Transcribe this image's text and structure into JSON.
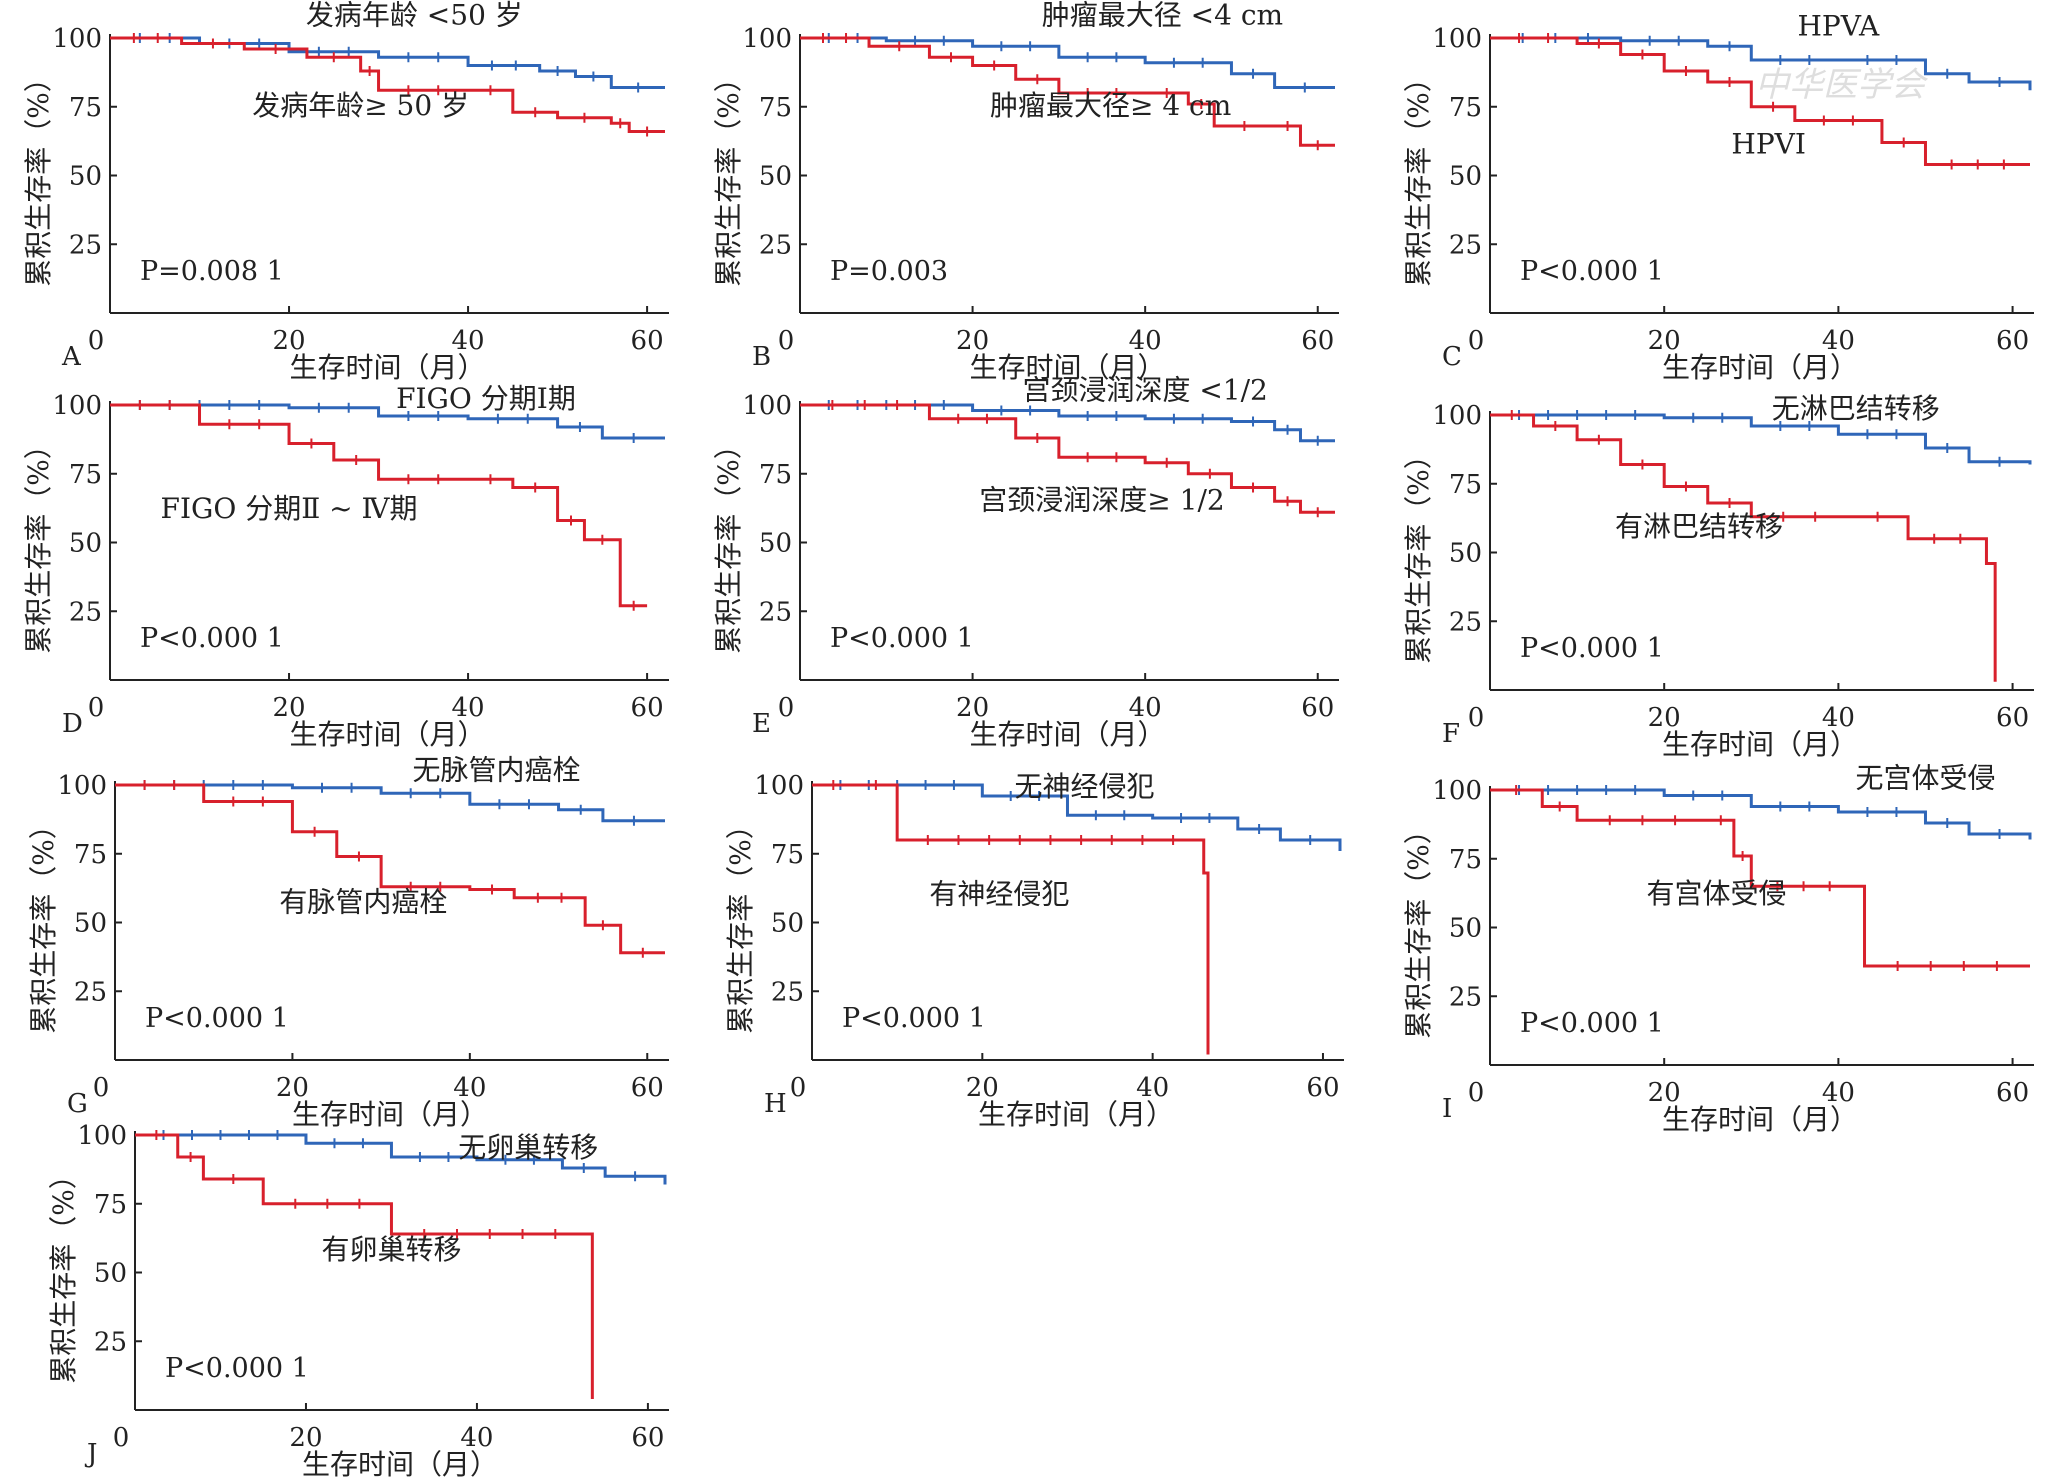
{
  "figure": {
    "watermark_text": "中华医学会",
    "colors": {
      "red": "#d8202c",
      "blue": "#2f66b8",
      "axis": "#222222"
    }
  },
  "chart_data": [
    {
      "type": "line",
      "panel": "A",
      "title": "",
      "xlabel": "生存时间（月）",
      "ylabel": "累积生存率（%）",
      "xlim": [
        0,
        62
      ],
      "ylim": [
        0,
        100
      ],
      "xticks": [
        "0",
        "20",
        "40",
        "60"
      ],
      "yticks": [
        "100",
        "75",
        "50",
        "25"
      ],
      "pvalue": "P=0.008 1",
      "series": [
        {
          "name": "发病年龄 <50 岁",
          "color": "blue",
          "x": [
            0,
            10,
            20,
            30,
            40,
            48,
            52,
            56,
            62
          ],
          "y": [
            100,
            98,
            95,
            93,
            90,
            88,
            86,
            82,
            82
          ]
        },
        {
          "name": "发病年龄≥ 50 岁",
          "color": "red",
          "x": [
            0,
            8,
            15,
            22,
            28,
            30,
            40,
            45,
            50,
            56,
            58,
            62
          ],
          "y": [
            100,
            98,
            96,
            93,
            88,
            81,
            81,
            73,
            71,
            69,
            66,
            66
          ]
        }
      ]
    },
    {
      "type": "line",
      "panel": "B",
      "title": "",
      "xlabel": "生存时间（月）",
      "ylabel": "累积生存率（%）",
      "xlim": [
        0,
        62
      ],
      "ylim": [
        0,
        100
      ],
      "xticks": [
        "0",
        "20",
        "40",
        "60"
      ],
      "yticks": [
        "100",
        "75",
        "50",
        "25"
      ],
      "pvalue": "P=0.003",
      "series": [
        {
          "name": "肿瘤最大径 <4 cm",
          "color": "blue",
          "x": [
            0,
            10,
            20,
            30,
            40,
            50,
            55,
            62
          ],
          "y": [
            100,
            99,
            97,
            93,
            91,
            87,
            82,
            82
          ]
        },
        {
          "name": "肿瘤最大径≥ 4 cm",
          "color": "red",
          "x": [
            0,
            8,
            15,
            20,
            25,
            30,
            40,
            45,
            48,
            55,
            58,
            62
          ],
          "y": [
            100,
            97,
            93,
            90,
            85,
            80,
            80,
            76,
            68,
            68,
            61,
            61
          ]
        }
      ]
    },
    {
      "type": "line",
      "panel": "C",
      "title": "",
      "xlabel": "生存时间（月）",
      "ylabel": "累积生存率（%）",
      "xlim": [
        0,
        62
      ],
      "ylim": [
        0,
        100
      ],
      "xticks": [
        "0",
        "20",
        "40",
        "60"
      ],
      "yticks": [
        "100",
        "75",
        "50",
        "25"
      ],
      "pvalue": "P<0.000 1",
      "series": [
        {
          "name": "HPVA",
          "color": "blue",
          "x": [
            0,
            15,
            25,
            30,
            40,
            50,
            55,
            62
          ],
          "y": [
            100,
            99,
            97,
            92,
            92,
            87,
            84,
            81
          ]
        },
        {
          "name": "HPVI",
          "color": "red",
          "x": [
            0,
            10,
            15,
            20,
            25,
            30,
            35,
            45,
            50,
            62
          ],
          "y": [
            100,
            98,
            94,
            88,
            84,
            75,
            70,
            62,
            54,
            54
          ]
        }
      ]
    },
    {
      "type": "line",
      "panel": "D",
      "title": "",
      "xlabel": "生存时间（月）",
      "ylabel": "累积生存率（%）",
      "xlim": [
        0,
        62
      ],
      "ylim": [
        0,
        100
      ],
      "xticks": [
        "0",
        "20",
        "40",
        "60"
      ],
      "yticks": [
        "100",
        "75",
        "50",
        "25"
      ],
      "pvalue": "P<0.000 1",
      "series": [
        {
          "name": "FIGO 分期Ⅰ期",
          "color": "blue",
          "x": [
            0,
            20,
            30,
            40,
            50,
            55,
            62
          ],
          "y": [
            100,
            99,
            96,
            95,
            92,
            88,
            88
          ]
        },
        {
          "name": "FIGO 分期Ⅱ ~ Ⅳ期",
          "color": "red",
          "x": [
            0,
            10,
            20,
            25,
            30,
            40,
            45,
            50,
            53,
            57,
            60
          ],
          "y": [
            100,
            93,
            86,
            80,
            73,
            73,
            70,
            58,
            51,
            27,
            27
          ]
        }
      ]
    },
    {
      "type": "line",
      "panel": "E",
      "title": "",
      "xlabel": "生存时间（月）",
      "ylabel": "累积生存率（%）",
      "xlim": [
        0,
        62
      ],
      "ylim": [
        0,
        100
      ],
      "xticks": [
        "0",
        "20",
        "40",
        "60"
      ],
      "yticks": [
        "100",
        "75",
        "50",
        "25"
      ],
      "pvalue": "P<0.000 1",
      "series": [
        {
          "name": "宫颈浸润深度 <1/2",
          "color": "blue",
          "x": [
            0,
            20,
            30,
            40,
            50,
            55,
            58,
            62
          ],
          "y": [
            100,
            98,
            96,
            95,
            94,
            91,
            87,
            87
          ]
        },
        {
          "name": "宫颈浸润深度≥ 1/2",
          "color": "red",
          "x": [
            0,
            15,
            25,
            30,
            40,
            45,
            50,
            55,
            58,
            62
          ],
          "y": [
            100,
            95,
            88,
            81,
            79,
            75,
            70,
            65,
            61,
            61
          ]
        }
      ]
    },
    {
      "type": "line",
      "panel": "F",
      "title": "",
      "xlabel": "生存时间（月）",
      "ylabel": "累积生存率（%）",
      "xlim": [
        0,
        62
      ],
      "ylim": [
        0,
        100
      ],
      "xticks": [
        "0",
        "20",
        "40",
        "60"
      ],
      "yticks": [
        "100",
        "75",
        "50",
        "25"
      ],
      "pvalue": "P<0.000 1",
      "series": [
        {
          "name": "无淋巴结转移",
          "color": "blue",
          "x": [
            0,
            20,
            30,
            40,
            50,
            55,
            62
          ],
          "y": [
            100,
            99,
            96,
            93,
            88,
            83,
            82
          ]
        },
        {
          "name": "有淋巴结转移",
          "color": "red",
          "x": [
            0,
            5,
            10,
            15,
            20,
            25,
            30,
            41,
            48,
            57,
            58
          ],
          "y": [
            100,
            96,
            91,
            82,
            74,
            68,
            63,
            63,
            55,
            46,
            3
          ]
        }
      ]
    },
    {
      "type": "line",
      "panel": "G",
      "title": "",
      "xlabel": "生存时间（月）",
      "ylabel": "累积生存率（%）",
      "xlim": [
        0,
        62
      ],
      "ylim": [
        0,
        100
      ],
      "xticks": [
        "0",
        "20",
        "40",
        "60"
      ],
      "yticks": [
        "100",
        "75",
        "50",
        "25"
      ],
      "pvalue": "P<0.000 1",
      "series": [
        {
          "name": "无脉管内癌栓",
          "color": "blue",
          "x": [
            0,
            20,
            30,
            40,
            50,
            55,
            62
          ],
          "y": [
            100,
            99,
            97,
            93,
            91,
            87,
            87
          ]
        },
        {
          "name": "有脉管内癌栓",
          "color": "red",
          "x": [
            0,
            10,
            20,
            25,
            30,
            40,
            45,
            53,
            57,
            62
          ],
          "y": [
            100,
            94,
            83,
            74,
            63,
            62,
            59,
            49,
            39,
            39
          ]
        }
      ]
    },
    {
      "type": "line",
      "panel": "H",
      "title": "",
      "xlabel": "生存时间（月）",
      "ylabel": "累积生存率（%）",
      "xlim": [
        0,
        62
      ],
      "ylim": [
        0,
        100
      ],
      "xticks": [
        "0",
        "20",
        "40",
        "60"
      ],
      "yticks": [
        "100",
        "75",
        "50",
        "25"
      ],
      "pvalue": "P<0.000 1",
      "series": [
        {
          "name": "无神经侵犯",
          "color": "blue",
          "x": [
            0,
            20,
            30,
            40,
            50,
            55,
            62
          ],
          "y": [
            100,
            96,
            89,
            88,
            84,
            80,
            76
          ]
        },
        {
          "name": "有神经侵犯",
          "color": "red",
          "x": [
            0,
            5,
            10,
            46,
            46.5
          ],
          "y": [
            100,
            100,
            80,
            68,
            2
          ]
        }
      ]
    },
    {
      "type": "line",
      "panel": "I",
      "title": "",
      "xlabel": "生存时间（月）",
      "ylabel": "累积生存率（%）",
      "xlim": [
        0,
        62
      ],
      "ylim": [
        0,
        100
      ],
      "xticks": [
        "0",
        "20",
        "40",
        "60"
      ],
      "yticks": [
        "100",
        "75",
        "50",
        "25"
      ],
      "pvalue": "P<0.000 1",
      "series": [
        {
          "name": "无宫体受侵",
          "color": "blue",
          "x": [
            0,
            20,
            30,
            40,
            50,
            55,
            62
          ],
          "y": [
            100,
            98,
            94,
            92,
            88,
            84,
            82
          ]
        },
        {
          "name": "有宫体受侵",
          "color": "red",
          "x": [
            0,
            6,
            10,
            25,
            28,
            30,
            42,
            43,
            62
          ],
          "y": [
            100,
            94,
            89,
            89,
            76,
            65,
            65,
            36,
            36
          ]
        }
      ]
    },
    {
      "type": "line",
      "panel": "J",
      "title": "",
      "xlabel": "生存时间（月）",
      "ylabel": "累积生存率（%）",
      "xlim": [
        0,
        62
      ],
      "ylim": [
        0,
        100
      ],
      "xticks": [
        "0",
        "20",
        "40",
        "60"
      ],
      "yticks": [
        "100",
        "75",
        "50",
        "25"
      ],
      "pvalue": "P<0.000 1",
      "series": [
        {
          "name": "无卵巢转移",
          "color": "blue",
          "x": [
            0,
            20,
            30,
            40,
            50,
            55,
            62
          ],
          "y": [
            100,
            97,
            92,
            91,
            88,
            85,
            82
          ]
        },
        {
          "name": "有卵巢转移",
          "color": "red",
          "x": [
            0,
            5,
            8,
            15,
            30,
            53,
            53.5
          ],
          "y": [
            100,
            92,
            84,
            75,
            64,
            64,
            4
          ]
        }
      ]
    }
  ]
}
